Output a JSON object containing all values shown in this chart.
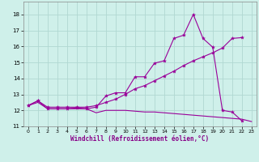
{
  "xlabel": "Windchill (Refroidissement éolien,°C)",
  "background_color": "#cff0ea",
  "grid_color": "#b0d8d2",
  "line_color": "#990099",
  "xlim": [
    -0.5,
    23.5
  ],
  "ylim": [
    11.0,
    18.8
  ],
  "yticks": [
    11,
    12,
    13,
    14,
    15,
    16,
    17,
    18
  ],
  "xticks": [
    0,
    1,
    2,
    3,
    4,
    5,
    6,
    7,
    8,
    9,
    10,
    11,
    12,
    13,
    14,
    15,
    16,
    17,
    18,
    19,
    20,
    21,
    22,
    23
  ],
  "series1_x": [
    0,
    1,
    2,
    3,
    4,
    5,
    6,
    7,
    8,
    9,
    10,
    11,
    12,
    13,
    14,
    15,
    16,
    17,
    18,
    19,
    20,
    21,
    22,
    23
  ],
  "series1_y": [
    12.3,
    12.5,
    12.1,
    12.1,
    12.1,
    12.1,
    12.1,
    11.85,
    12.0,
    12.0,
    12.0,
    11.95,
    11.9,
    11.9,
    11.85,
    11.8,
    11.75,
    11.7,
    11.65,
    11.6,
    11.55,
    11.5,
    11.45,
    11.3
  ],
  "series2_x": [
    0,
    1,
    2,
    3,
    4,
    5,
    6,
    7,
    8,
    9,
    10,
    11,
    12,
    13,
    14,
    15,
    16,
    17,
    18,
    19,
    20,
    21,
    22
  ],
  "series2_y": [
    12.3,
    12.6,
    12.1,
    12.1,
    12.1,
    12.15,
    12.1,
    12.2,
    12.9,
    13.1,
    13.1,
    14.1,
    14.1,
    14.95,
    15.1,
    16.5,
    16.7,
    18.0,
    16.5,
    15.95,
    12.0,
    11.9,
    11.35
  ],
  "series3_x": [
    0,
    1,
    2,
    3,
    4,
    5,
    6,
    7,
    8,
    9,
    10,
    11,
    12,
    13,
    14,
    15,
    16,
    17,
    18,
    19,
    20,
    21,
    22
  ],
  "series3_y": [
    12.3,
    12.6,
    12.2,
    12.2,
    12.2,
    12.2,
    12.2,
    12.3,
    12.5,
    12.7,
    13.0,
    13.35,
    13.55,
    13.85,
    14.15,
    14.45,
    14.8,
    15.1,
    15.35,
    15.6,
    15.9,
    16.5,
    16.55
  ]
}
